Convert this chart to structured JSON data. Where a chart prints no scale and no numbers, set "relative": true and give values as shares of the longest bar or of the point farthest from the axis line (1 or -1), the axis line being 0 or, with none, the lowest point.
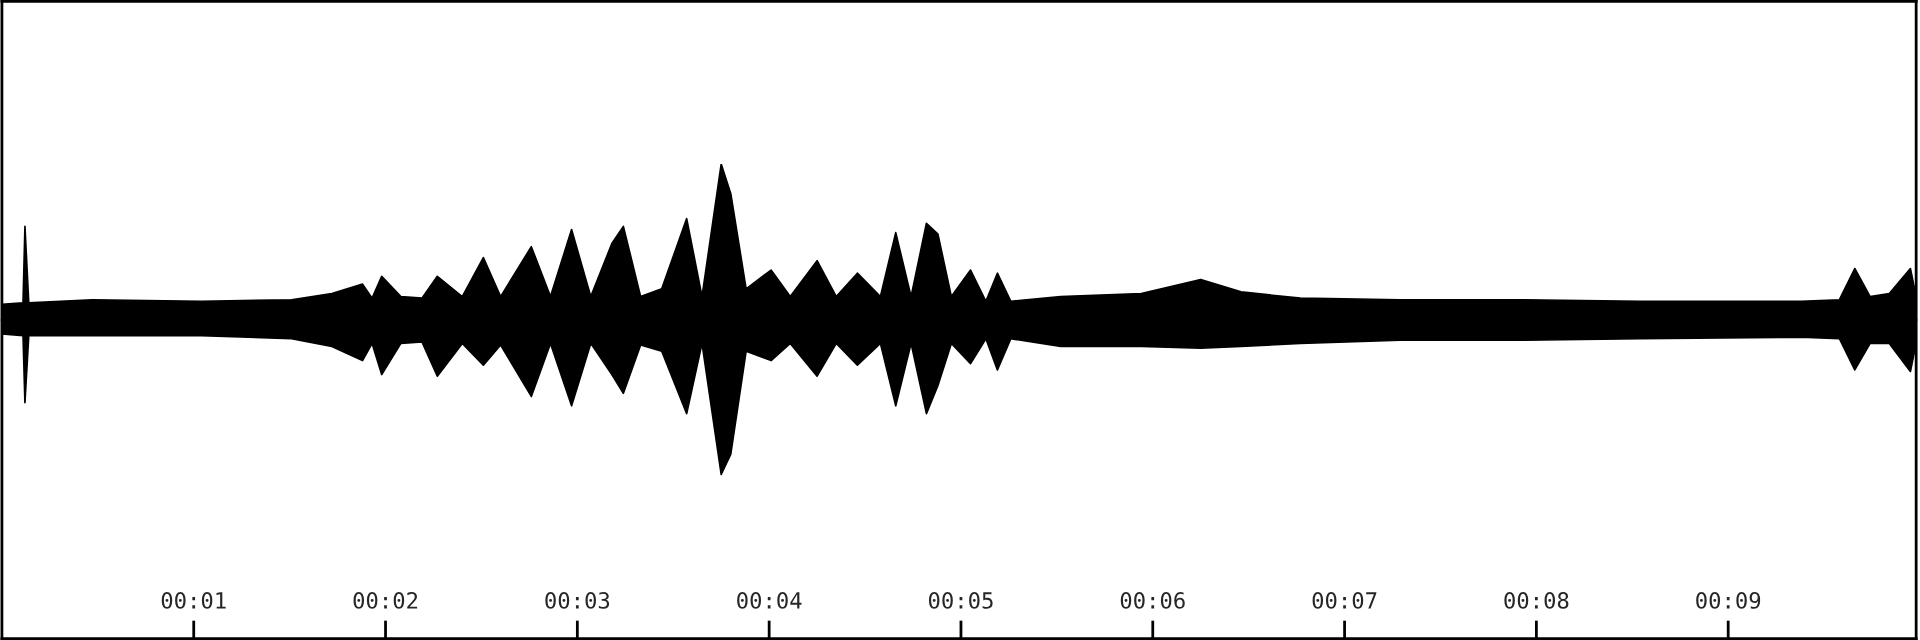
{
  "chart_data": {
    "type": "area",
    "relative": true,
    "x": [
      0,
      0.11,
      0.12,
      0.14,
      0.47,
      1.04,
      1.51,
      1.72,
      1.88,
      1.93,
      1.98,
      2.08,
      2.19,
      2.27,
      2.4,
      2.51,
      2.6,
      2.76,
      2.86,
      2.97,
      3.07,
      3.18,
      3.24,
      3.33,
      3.44,
      3.57,
      3.65,
      3.75,
      3.8,
      3.88,
      4.01,
      4.11,
      4.25,
      4.35,
      4.46,
      4.58,
      4.66,
      4.74,
      4.82,
      4.88,
      4.95,
      5.05,
      5.13,
      5.19,
      5.26,
      5.52,
      5.94,
      6.25,
      6.46,
      6.77,
      7.29,
      7.92,
      8.54,
      9.38,
      9.58,
      9.66,
      9.74,
      9.84,
      9.95,
      9.98
    ],
    "series": [
      {
        "color": "#000000",
        "values": [
          0.1,
          0.11,
          0.6,
          0.11,
          0.13,
          0.12,
          0.13,
          0.17,
          0.23,
          0.14,
          0.28,
          0.15,
          0.14,
          0.28,
          0.15,
          0.4,
          0.15,
          0.47,
          0.15,
          0.58,
          0.15,
          0.49,
          0.6,
          0.15,
          0.2,
          0.65,
          0.15,
          1.0,
          0.81,
          0.2,
          0.32,
          0.15,
          0.38,
          0.15,
          0.3,
          0.15,
          0.56,
          0.15,
          0.62,
          0.55,
          0.15,
          0.32,
          0.12,
          0.3,
          0.12,
          0.15,
          0.17,
          0.26,
          0.18,
          0.14,
          0.13,
          0.13,
          0.12,
          0.12,
          0.13,
          0.33,
          0.15,
          0.17,
          0.33,
          0.15
        ]
      },
      {
        "color": "#000000",
        "values": [
          -0.09,
          -0.1,
          -0.53,
          -0.1,
          -0.1,
          -0.1,
          -0.12,
          -0.17,
          -0.26,
          -0.15,
          -0.35,
          -0.15,
          -0.14,
          -0.36,
          -0.15,
          -0.29,
          -0.16,
          -0.49,
          -0.15,
          -0.55,
          -0.15,
          -0.35,
          -0.47,
          -0.16,
          -0.2,
          -0.6,
          -0.15,
          -0.99,
          -0.86,
          -0.2,
          -0.26,
          -0.15,
          -0.36,
          -0.15,
          -0.29,
          -0.15,
          -0.55,
          -0.15,
          -0.6,
          -0.42,
          -0.15,
          -0.28,
          -0.12,
          -0.32,
          -0.12,
          -0.17,
          -0.17,
          -0.18,
          -0.17,
          -0.15,
          -0.13,
          -0.13,
          -0.12,
          -0.11,
          -0.12,
          -0.32,
          -0.15,
          -0.15,
          -0.33,
          -0.15
        ]
      }
    ],
    "xlim": [
      0,
      9.98
    ],
    "xticks": [
      {
        "value": 1,
        "label": "00:01"
      },
      {
        "value": 2,
        "label": "00:02"
      },
      {
        "value": 3,
        "label": "00:03"
      },
      {
        "value": 4,
        "label": "00:04"
      },
      {
        "value": 5,
        "label": "00:05"
      },
      {
        "value": 6,
        "label": "00:06"
      },
      {
        "value": 7,
        "label": "00:07"
      },
      {
        "value": 8,
        "label": "00:08"
      },
      {
        "value": 9,
        "label": "00:09"
      }
    ],
    "tick_labels": "x"
  }
}
